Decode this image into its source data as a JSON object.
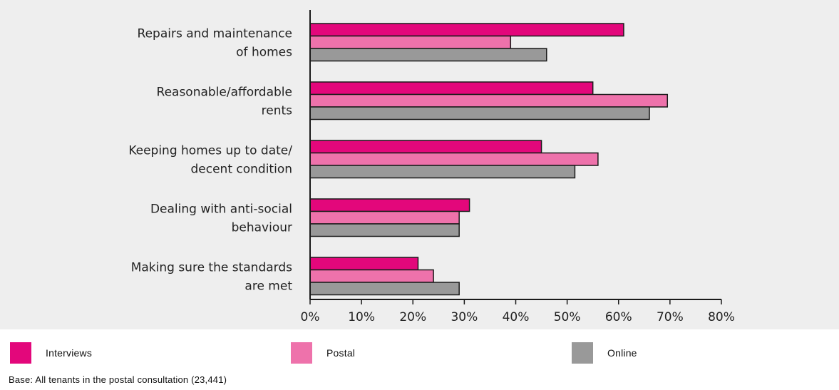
{
  "chart_data": {
    "type": "bar",
    "orientation": "horizontal",
    "categories": [
      [
        "Repairs and maintenance",
        "of homes"
      ],
      [
        "Reasonable/affordable",
        "rents"
      ],
      [
        "Keeping homes up to date/",
        "decent condition"
      ],
      [
        "Dealing with anti-social",
        "behaviour"
      ],
      [
        "Making sure the standards",
        "are met"
      ]
    ],
    "series": [
      {
        "name": "Interviews",
        "color": "#e3077b",
        "values": [
          61,
          55,
          45,
          31,
          21
        ]
      },
      {
        "name": "Postal",
        "color": "#ee72ab",
        "values": [
          39,
          69.5,
          56,
          29,
          24
        ]
      },
      {
        "name": "Online",
        "color": "#999999",
        "values": [
          46,
          66,
          51.5,
          29,
          29
        ]
      }
    ],
    "xlim": [
      0,
      80
    ],
    "xticks": [
      "0%",
      "10%",
      "20%",
      "30%",
      "40%",
      "50%",
      "60%",
      "70%",
      "80%"
    ],
    "legend_position": "bottom",
    "grid": false
  },
  "note": "Base: All tenants in the postal consultation (23,441)"
}
